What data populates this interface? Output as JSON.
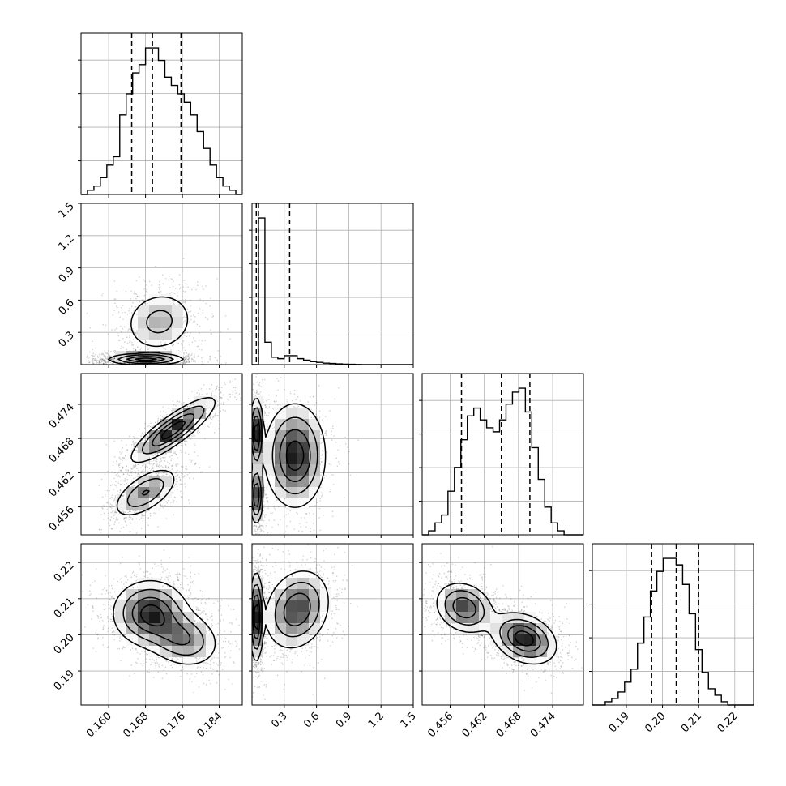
{
  "chart_data": {
    "type": "corner",
    "title": "",
    "grid": true,
    "colors": {
      "line": "#000000",
      "grid": "#b0b0b0",
      "points": "#000000",
      "background": "#ffffff"
    },
    "parameters": [
      {
        "name": "",
        "range": [
          0.154,
          0.189
        ],
        "ticks": [
          0.16,
          0.168,
          0.176,
          0.184
        ],
        "tick_labels": [
          "0.160",
          "0.168",
          "0.176",
          "0.184"
        ],
        "quantiles": [
          0.165,
          0.1695,
          0.1757
        ],
        "histogram": [
          0,
          1,
          2,
          4,
          7,
          9,
          19,
          24,
          29,
          31,
          35,
          35,
          32,
          28,
          26,
          24,
          22,
          19,
          15,
          11,
          7,
          4,
          2,
          1,
          0
        ]
      },
      {
        "name": "",
        "range": [
          0.0,
          1.5
        ],
        "ticks": [
          0.3,
          0.6,
          0.9,
          1.2,
          1.5
        ],
        "tick_labels": [
          "0.3",
          "0.6",
          "0.9",
          "1.2",
          "1.5"
        ],
        "quantiles": [
          0.04,
          0.06,
          0.35
        ],
        "histogram": [
          0,
          98,
          15,
          5,
          4,
          6,
          6,
          4,
          3,
          2,
          1.5,
          1,
          0.8,
          0.5,
          0.3,
          0.2,
          0.1,
          0,
          0,
          0,
          0,
          0,
          0,
          0,
          0
        ]
      },
      {
        "name": "",
        "range": [
          0.4511,
          0.4794
        ],
        "ticks": [
          0.456,
          0.462,
          0.468,
          0.474
        ],
        "tick_labels": [
          "0.456",
          "0.462",
          "0.468",
          "0.474"
        ],
        "quantiles": [
          0.458,
          0.465,
          0.47
        ],
        "histogram": [
          0,
          1,
          3,
          5,
          11,
          17,
          24,
          30,
          32,
          29,
          27,
          26,
          29,
          33,
          36,
          37,
          31,
          22,
          14,
          7,
          3,
          1,
          0,
          0,
          0
        ]
      },
      {
        "name": "",
        "range": [
          0.1806,
          0.2252
        ],
        "ticks": [
          0.19,
          0.2,
          0.21,
          0.22
        ],
        "tick_labels": [
          "0.19",
          "0.20",
          "0.21",
          "0.22"
        ],
        "quantiles": [
          0.197,
          0.2038,
          0.21
        ],
        "histogram": [
          0,
          0,
          1,
          2,
          4,
          7,
          11,
          19,
          27,
          35,
          41,
          45,
          45,
          43,
          37,
          28,
          17,
          10,
          5,
          3,
          1,
          0,
          0,
          0,
          0
        ]
      }
    ],
    "pairs": [
      {
        "row": 1,
        "col": 0,
        "points_summary": "bimodal cloud: main mode near (0.168, 0.05), secondary mode near (0.172, 0.40)",
        "modes": [
          {
            "x": 0.168,
            "y": 0.05,
            "sx": 0.004,
            "sy": 0.025,
            "corr": 0.0,
            "weight": 0.7
          },
          {
            "x": 0.171,
            "y": 0.4,
            "sx": 0.004,
            "sy": 0.15,
            "corr": 0.1,
            "weight": 0.3
          }
        ]
      },
      {
        "row": 2,
        "col": 0,
        "modes": [
          {
            "x": 0.174,
            "y": 0.4695,
            "sx": 0.0045,
            "sy": 0.0028,
            "corr": 0.85,
            "weight": 0.62
          },
          {
            "x": 0.168,
            "y": 0.4585,
            "sx": 0.0035,
            "sy": 0.0022,
            "corr": 0.6,
            "weight": 0.38
          }
        ]
      },
      {
        "row": 2,
        "col": 1,
        "modes": [
          {
            "x": 0.04,
            "y": 0.469,
            "sx": 0.03,
            "sy": 0.003,
            "corr": 0.0,
            "weight": 0.35
          },
          {
            "x": 0.04,
            "y": 0.458,
            "sx": 0.03,
            "sy": 0.0025,
            "corr": 0.0,
            "weight": 0.3
          },
          {
            "x": 0.4,
            "y": 0.465,
            "sx": 0.14,
            "sy": 0.0045,
            "corr": 0.0,
            "weight": 0.35
          }
        ]
      },
      {
        "row": 3,
        "col": 0,
        "modes": [
          {
            "x": 0.169,
            "y": 0.206,
            "sx": 0.004,
            "sy": 0.0045,
            "corr": 0.0,
            "weight": 0.6
          },
          {
            "x": 0.176,
            "y": 0.199,
            "sx": 0.004,
            "sy": 0.004,
            "corr": -0.2,
            "weight": 0.4
          }
        ]
      },
      {
        "row": 3,
        "col": 1,
        "modes": [
          {
            "x": 0.04,
            "y": 0.205,
            "sx": 0.03,
            "sy": 0.006,
            "corr": 0.0,
            "weight": 0.55
          },
          {
            "x": 0.42,
            "y": 0.207,
            "sx": 0.15,
            "sy": 0.0055,
            "corr": 0.2,
            "weight": 0.45
          }
        ]
      },
      {
        "row": 3,
        "col": 2,
        "modes": [
          {
            "x": 0.4585,
            "y": 0.2075,
            "sx": 0.0025,
            "sy": 0.0035,
            "corr": -0.2,
            "weight": 0.45
          },
          {
            "x": 0.469,
            "y": 0.199,
            "sx": 0.0028,
            "sy": 0.0035,
            "corr": -0.3,
            "weight": 0.55
          }
        ]
      }
    ]
  }
}
